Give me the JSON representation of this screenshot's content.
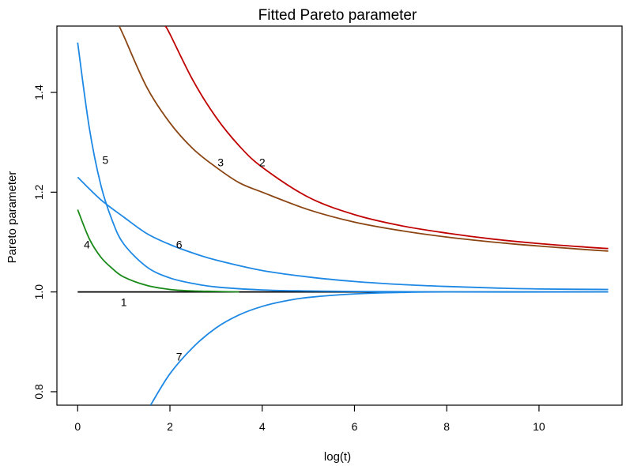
{
  "chart_data": {
    "type": "line",
    "title": "Fitted Pareto parameter",
    "xlabel": "log(t)",
    "ylabel": "Pareto parameter",
    "xlim": [
      -0.45,
      11.8
    ],
    "ylim": [
      0.773,
      1.533
    ],
    "xticks": [
      0,
      2,
      4,
      6,
      8,
      10
    ],
    "yticks": [
      0.8,
      1.0,
      1.2,
      1.4
    ],
    "grid": false,
    "legend": "none",
    "series": [
      {
        "name": "1",
        "color": "#000000",
        "label_at": [
          1.0,
          0.98
        ],
        "x": [
          0,
          11.5
        ],
        "y": [
          1.0,
          1.0
        ]
      },
      {
        "name": "2",
        "color": "#c00000",
        "label_at": [
          4.0,
          1.26
        ],
        "x": [
          1.9,
          2.0,
          2.5,
          3.0,
          3.5,
          4.0,
          5.0,
          6.0,
          7.0,
          8.0,
          9.0,
          10.0,
          11.0,
          11.5
        ],
        "y": [
          1.533,
          1.517,
          1.424,
          1.35,
          1.293,
          1.25,
          1.19,
          1.155,
          1.133,
          1.118,
          1.106,
          1.097,
          1.09,
          1.087
        ]
      },
      {
        "name": "3",
        "color": "#8b4513",
        "label_at": [
          3.1,
          1.26
        ],
        "x": [
          0.9,
          1.0,
          1.5,
          2.0,
          2.5,
          3.0,
          3.5,
          4.0,
          5.0,
          6.0,
          7.0,
          8.0,
          9.0,
          10.0,
          11.0,
          11.5
        ],
        "y": [
          1.533,
          1.513,
          1.41,
          1.339,
          1.287,
          1.25,
          1.219,
          1.2,
          1.165,
          1.14,
          1.123,
          1.11,
          1.1,
          1.092,
          1.085,
          1.082
        ]
      },
      {
        "name": "4",
        "color": "#1a8a1a",
        "label_at": [
          0.2,
          1.095
        ],
        "x": [
          0,
          0.25,
          0.5,
          0.75,
          1.0,
          1.5,
          2.0,
          2.5,
          3.0,
          3.5
        ],
        "y": [
          1.165,
          1.107,
          1.07,
          1.047,
          1.03,
          1.013,
          1.005,
          1.002,
          1.001,
          1.0
        ]
      },
      {
        "name": "5",
        "color": "#1e88e5",
        "label_at": [
          0.6,
          1.265
        ],
        "x": [
          0,
          0.25,
          0.5,
          0.75,
          1.0,
          1.5,
          2.0,
          2.5,
          3.0,
          4.0,
          5.0,
          6.0,
          8.0,
          11.5
        ],
        "y": [
          1.5,
          1.33,
          1.215,
          1.143,
          1.096,
          1.05,
          1.028,
          1.017,
          1.01,
          1.004,
          1.002,
          1.001,
          1.0,
          1.0
        ]
      },
      {
        "name": "6",
        "color": "#1e88e5",
        "label_at": [
          2.2,
          1.095
        ],
        "x": [
          0,
          0.5,
          1.0,
          1.5,
          2.0,
          2.5,
          3.0,
          4.0,
          5.0,
          6.0,
          7.0,
          8.0,
          9.0,
          10.0,
          11.5
        ],
        "y": [
          1.23,
          1.185,
          1.15,
          1.117,
          1.095,
          1.078,
          1.064,
          1.043,
          1.03,
          1.021,
          1.015,
          1.011,
          1.008,
          1.006,
          1.005
        ]
      },
      {
        "name": "7",
        "color": "#1e88e5",
        "label_at": [
          2.2,
          0.87
        ],
        "x": [
          1.58,
          2.0,
          2.5,
          3.0,
          3.5,
          4.0,
          4.5,
          5.0,
          6.0,
          7.0,
          8.0,
          11.5
        ],
        "y": [
          0.773,
          0.836,
          0.889,
          0.928,
          0.954,
          0.971,
          0.982,
          0.989,
          0.996,
          0.999,
          1.0,
          1.0
        ]
      }
    ]
  }
}
